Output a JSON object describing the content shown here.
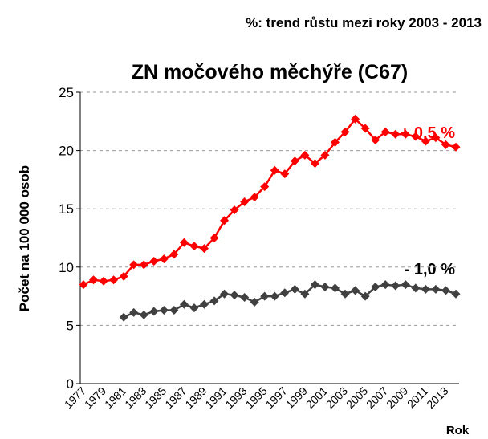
{
  "chart_data": {
    "type": "line",
    "subtitle": "%: trend růstu mezi roky 2003 - 2013",
    "title": "ZN močového měchýře (C67)",
    "y_label": "Počet na 100 000 osob",
    "x_label": "Rok",
    "categories": [
      "1977",
      null,
      "1979",
      null,
      "1981",
      null,
      "1983",
      null,
      "1985",
      null,
      "1987",
      null,
      "1989",
      null,
      "1991",
      null,
      "1993",
      null,
      "1995",
      null,
      "1997",
      null,
      "1999",
      null,
      "2001",
      null,
      "2003",
      null,
      "2005",
      null,
      "2007",
      null,
      "2009",
      null,
      "2011",
      null,
      "2013",
      null
    ],
    "series": [
      {
        "name": "red",
        "color": "#ff0000",
        "values": [
          8.5,
          8.9,
          8.8,
          8.9,
          9.2,
          10.2,
          10.2,
          10.5,
          10.7,
          11.1,
          12.1,
          11.8,
          11.6,
          12.5,
          14.0,
          14.9,
          15.6,
          16.0,
          16.9,
          18.3,
          18.0,
          19.1,
          19.6,
          18.9,
          19.6,
          20.7,
          21.6,
          22.7,
          21.9,
          20.9,
          21.6,
          21.4,
          21.4,
          21.2,
          20.8,
          21.1,
          20.5,
          20.3
        ]
      },
      {
        "name": "black",
        "color": "#404040",
        "values": [
          null,
          null,
          null,
          null,
          5.7,
          6.1,
          5.9,
          6.2,
          6.3,
          6.3,
          6.8,
          6.5,
          6.8,
          7.1,
          7.7,
          7.6,
          7.4,
          7.0,
          7.5,
          7.5,
          7.8,
          8.1,
          7.7,
          8.5,
          8.3,
          8.2,
          7.7,
          8.0,
          7.5,
          8.3,
          8.5,
          8.4,
          8.5,
          8.2,
          8.1,
          8.1,
          8.0,
          7.7
        ]
      }
    ],
    "annotations": [
      {
        "text": "+ 0,5 %",
        "color": "#ff0000"
      },
      {
        "text": "- 1,0 %",
        "color": "#000000"
      }
    ],
    "ylim": [
      0,
      25
    ],
    "yticks": [
      0,
      5,
      10,
      15,
      20,
      25
    ],
    "grid": true
  }
}
